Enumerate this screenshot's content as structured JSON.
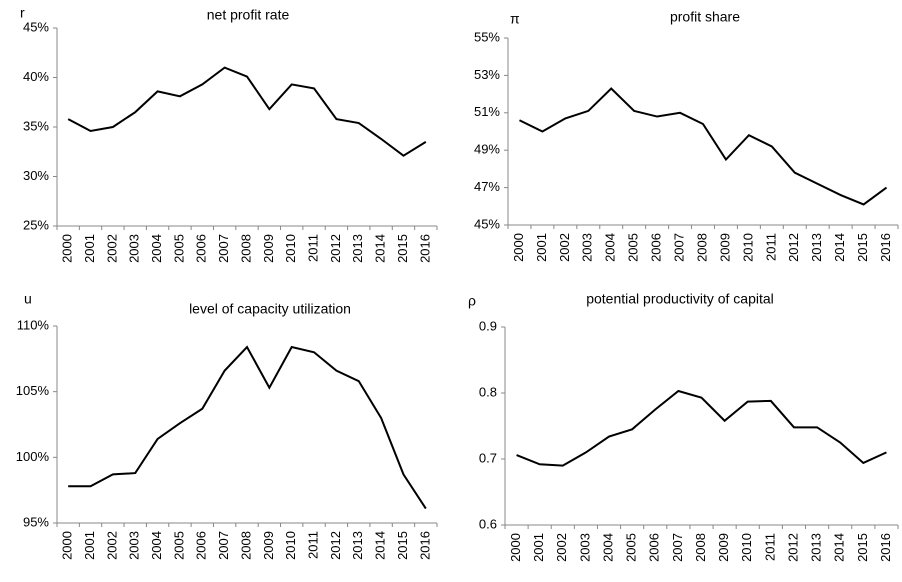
{
  "chart_data": [
    {
      "type": "line",
      "title": "net profit rate",
      "y_label": "r",
      "categories": [
        "2000",
        "2001",
        "2002",
        "2003",
        "2004",
        "2005",
        "2006",
        "2007",
        "2008",
        "2009",
        "2010",
        "2011",
        "2012",
        "2013",
        "2014",
        "2015",
        "2016"
      ],
      "values": [
        35.8,
        34.6,
        35.0,
        36.5,
        38.6,
        38.1,
        39.3,
        41.0,
        40.1,
        36.8,
        39.3,
        38.9,
        35.8,
        35.4,
        33.8,
        32.1,
        33.5
      ],
      "color": "#000000",
      "ylim": [
        25,
        45
      ],
      "yticks": [
        {
          "value": 25,
          "label": "25%"
        },
        {
          "value": 30,
          "label": "30%"
        },
        {
          "value": 35,
          "label": "35%"
        },
        {
          "value": 40,
          "label": "40%"
        },
        {
          "value": 45,
          "label": "45%"
        }
      ]
    },
    {
      "type": "line",
      "title": "profit share",
      "y_label": "π",
      "categories": [
        "2000",
        "2001",
        "2002",
        "2003",
        "2004",
        "2005",
        "2006",
        "2007",
        "2008",
        "2009",
        "2010",
        "2011",
        "2012",
        "2013",
        "2014",
        "2015",
        "2016"
      ],
      "values": [
        50.6,
        50.0,
        50.7,
        51.1,
        52.3,
        51.1,
        50.8,
        51.0,
        50.4,
        48.5,
        49.8,
        49.2,
        47.8,
        47.2,
        46.6,
        46.1,
        47.0
      ],
      "color": "#000000",
      "ylim": [
        45,
        55
      ],
      "yticks": [
        {
          "value": 45,
          "label": "45%"
        },
        {
          "value": 47,
          "label": "47%"
        },
        {
          "value": 49,
          "label": "49%"
        },
        {
          "value": 51,
          "label": "51%"
        },
        {
          "value": 53,
          "label": "53%"
        },
        {
          "value": 55,
          "label": "55%"
        }
      ]
    },
    {
      "type": "line",
      "title": "level of capacity utilization",
      "y_label": "u",
      "categories": [
        "2000",
        "2001",
        "2002",
        "2003",
        "2004",
        "2005",
        "2006",
        "2007",
        "2008",
        "2009",
        "2010",
        "2011",
        "2012",
        "2013",
        "2014",
        "2015",
        "2016"
      ],
      "values": [
        97.8,
        97.8,
        98.7,
        98.8,
        101.4,
        102.6,
        103.7,
        106.6,
        108.4,
        105.3,
        108.4,
        108.0,
        106.6,
        105.8,
        103.0,
        98.7,
        96.1
      ],
      "color": "#000000",
      "ylim": [
        95,
        110
      ],
      "yticks": [
        {
          "value": 95,
          "label": "95%"
        },
        {
          "value": 100,
          "label": "100%"
        },
        {
          "value": 105,
          "label": "105%"
        },
        {
          "value": 110,
          "label": "110%"
        }
      ]
    },
    {
      "type": "line",
      "title": "potential productivity of capital",
      "y_label": "ρ",
      "categories": [
        "2000",
        "2001",
        "2002",
        "2003",
        "2004",
        "2005",
        "2006",
        "2007",
        "2008",
        "2009",
        "2010",
        "2011",
        "2012",
        "2013",
        "2014",
        "2015",
        "2016"
      ],
      "values": [
        0.706,
        0.692,
        0.69,
        0.71,
        0.734,
        0.745,
        0.775,
        0.803,
        0.793,
        0.758,
        0.787,
        0.788,
        0.748,
        0.748,
        0.725,
        0.694,
        0.71
      ],
      "color": "#000000",
      "ylim": [
        0.6,
        0.9
      ],
      "yticks": [
        0.6,
        0.7,
        0.8,
        0.9
      ]
    }
  ]
}
